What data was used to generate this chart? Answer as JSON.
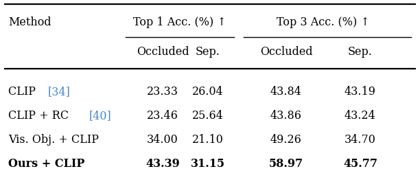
{
  "rows": [
    {
      "method_parts": [
        {
          "text": "CLIP ",
          "color": "#000000"
        },
        {
          "text": "[34]",
          "color": "#4488cc"
        }
      ],
      "vals": [
        "23.33",
        "26.04",
        "43.84",
        "43.19"
      ],
      "bold": false
    },
    {
      "method_parts": [
        {
          "text": "CLIP + RC ",
          "color": "#000000"
        },
        {
          "text": "[40]",
          "color": "#4488cc"
        }
      ],
      "vals": [
        "23.46",
        "25.64",
        "43.86",
        "43.24"
      ],
      "bold": false
    },
    {
      "method_parts": [
        {
          "text": "Vis. Obj. + CLIP",
          "color": "#000000"
        }
      ],
      "vals": [
        "34.00",
        "21.10",
        "49.26",
        "34.70"
      ],
      "bold": false
    },
    {
      "method_parts": [
        {
          "text": "Ours + CLIP",
          "color": "#000000"
        }
      ],
      "vals": [
        "43.39",
        "31.15",
        "58.97",
        "45.77"
      ],
      "bold": true
    }
  ],
  "top1_label": "Top 1 Acc. (%) ↑",
  "top3_label": "Top 3 Acc. (%) ↑",
  "col_sub": [
    "Occluded",
    "Sep.",
    "Occluded",
    "Sep."
  ],
  "method_label": "Method",
  "ref_color": "#4488cc",
  "text_color": "#000000",
  "bg_color": "#ffffff",
  "fontsize": 11.5,
  "figwidth": 6.12,
  "figheight": 2.46,
  "dpi": 100
}
